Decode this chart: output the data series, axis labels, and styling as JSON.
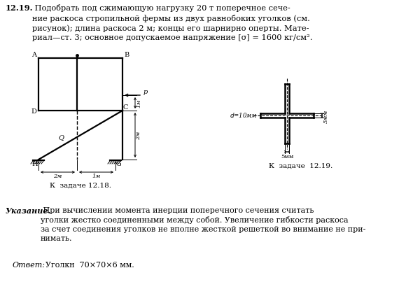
{
  "title_bold": "12.19.",
  "title_text": " Подобрать под сжимающую нагрузку 20 т поперечное сече-\nние раскоса стропильной фермы из двух равнобоких уголков (см.\nрисунок); длина раскоса 2 м; концы его шарнирно оперты. Мате-\nриал—ст. 3; основное допускаемое напряжение [σ] = 1600 кг/см².",
  "caption1": "К  задаче 12.18.",
  "caption2": "К  задаче  12.19.",
  "note_italic": "Указание.",
  "note_text": " При вычислении момента инерции поперечного сечения считать\nуголки жестко соединенными между собой. Увеличение гибкости раскоса\nза счет соединения уголков не вполне жесткой решеткой во внимание не при-\nнимать.",
  "answer_italic": "Ответ:",
  "answer_text": "  Уголкн  70×70×6 мм.",
  "bg_color": "#ffffff",
  "text_color": "#000000",
  "diagram_color": "#000000"
}
